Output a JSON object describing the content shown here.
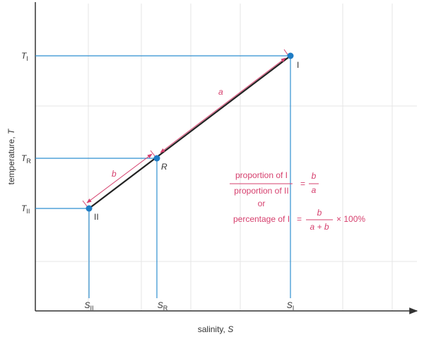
{
  "axes": {
    "y_label": {
      "text": "temperature, ",
      "var": "T"
    },
    "x_label": {
      "text": "salinity, ",
      "var": "S"
    }
  },
  "temperature_labels": [
    {
      "main": "T",
      "sub": "I"
    },
    {
      "main": "T",
      "sub": "R"
    },
    {
      "main": "T",
      "sub": "II"
    }
  ],
  "salinity_labels": [
    {
      "main": "S",
      "sub": "II"
    },
    {
      "main": "S",
      "sub": "R"
    },
    {
      "main": "S",
      "sub": "I"
    }
  ],
  "points": [
    "I",
    "R",
    "II"
  ],
  "segments": [
    "a",
    "b"
  ],
  "formula": {
    "ratio_numerator": "proportion of I",
    "ratio_denominator": "proportion of II",
    "equals": "=",
    "ratio_b": "b",
    "ratio_a": "a",
    "or": "or",
    "percentage": "percentage of I",
    "pct_numerator": "b",
    "pct_denominator": "a + b",
    "pct_factor": "× 100%"
  }
}
